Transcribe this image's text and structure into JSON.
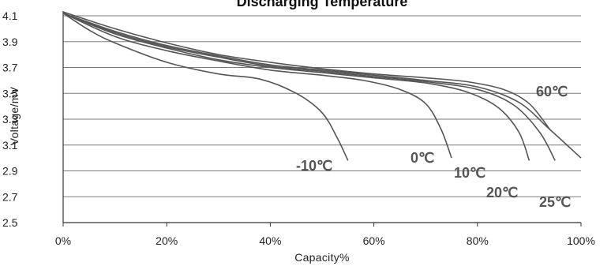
{
  "chart_data": {
    "type": "line",
    "title": "Discharging Temperature",
    "xlabel": "Capacity%",
    "ylabel": "Voltage/mV",
    "xlim": [
      0,
      100
    ],
    "ylim": [
      2.5,
      4.15
    ],
    "x_ticks": [
      "0%",
      "20%",
      "40%",
      "60%",
      "80%",
      "100%"
    ],
    "y_ticks": [
      "2.5",
      "2.7",
      "2.9",
      "3.1",
      "3.3",
      "3.5",
      "3.7",
      "3.9",
      "4.1"
    ],
    "grid": "horizontal",
    "line_color": "#555555",
    "series": [
      {
        "name": "-10℃",
        "x": [
          0,
          5,
          10,
          20,
          30,
          38,
          45,
          50,
          53,
          55
        ],
        "y": [
          4.12,
          3.99,
          3.89,
          3.74,
          3.65,
          3.61,
          3.5,
          3.35,
          3.15,
          2.98
        ]
      },
      {
        "name": "0℃",
        "x": [
          0,
          10,
          20,
          30,
          40,
          50,
          58,
          65,
          70,
          73,
          75
        ],
        "y": [
          4.12,
          3.94,
          3.83,
          3.75,
          3.68,
          3.64,
          3.6,
          3.53,
          3.42,
          3.22,
          3.0
        ]
      },
      {
        "name": "10℃",
        "x": [
          0,
          10,
          20,
          30,
          40,
          50,
          60,
          70,
          78,
          84,
          88,
          90
        ],
        "y": [
          4.12,
          3.96,
          3.85,
          3.76,
          3.7,
          3.66,
          3.62,
          3.58,
          3.51,
          3.39,
          3.2,
          2.98
        ]
      },
      {
        "name": "20℃",
        "x": [
          0,
          10,
          20,
          30,
          40,
          50,
          60,
          70,
          80,
          87,
          92,
          95
        ],
        "y": [
          4.12,
          3.97,
          3.86,
          3.78,
          3.71,
          3.67,
          3.63,
          3.59,
          3.53,
          3.41,
          3.2,
          2.98
        ]
      },
      {
        "name": "25℃",
        "x": [
          0,
          10,
          20,
          30,
          40,
          50,
          60,
          70,
          80,
          88,
          94,
          100
        ],
        "y": [
          4.12,
          3.98,
          3.87,
          3.79,
          3.72,
          3.68,
          3.64,
          3.6,
          3.55,
          3.43,
          3.22,
          3.0
        ]
      },
      {
        "name": "60℃",
        "x": [
          0,
          10,
          20,
          30,
          40,
          50,
          60,
          70,
          78,
          85,
          90,
          94
        ],
        "y": [
          4.13,
          4.0,
          3.89,
          3.8,
          3.74,
          3.69,
          3.65,
          3.62,
          3.59,
          3.53,
          3.42,
          3.22
        ]
      }
    ]
  }
}
